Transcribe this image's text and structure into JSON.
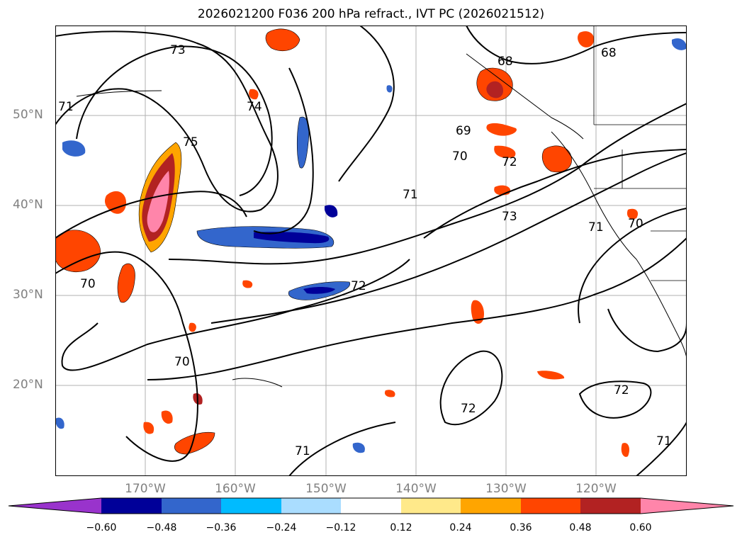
{
  "title": "2026021200 F036 200 hPa refract., IVT PC (2026021512)",
  "lat_labels": [
    {
      "text": "50°N",
      "lat": 50
    },
    {
      "text": "40°N",
      "lat": 40
    },
    {
      "text": "30°N",
      "lat": 30
    },
    {
      "text": "20°N",
      "lat": 20
    }
  ],
  "lon_labels": [
    {
      "text": "170°W",
      "lon": -170
    },
    {
      "text": "160°W",
      "lon": -160
    },
    {
      "text": "150°W",
      "lon": -150
    },
    {
      "text": "140°W",
      "lon": -140
    },
    {
      "text": "130°W",
      "lon": -130
    },
    {
      "text": "120°W",
      "lon": -120
    }
  ],
  "colorbar": {
    "ticks": [
      "−0.60",
      "−0.48",
      "−0.36",
      "−0.24",
      "−0.12",
      "0.12",
      "0.24",
      "0.36",
      "0.48",
      "0.60"
    ],
    "colors": [
      "#9933cc",
      "#000099",
      "#3366cc",
      "#00bbff",
      "#aaddff",
      "#ffffff",
      "#ffe98a",
      "#ffa500",
      "#ff4500",
      "#b22222",
      "#ff85aa"
    ]
  },
  "contour_labels": [
    "73",
    "74",
    "75",
    "71",
    "68",
    "68",
    "69",
    "70",
    "72",
    "71",
    "73",
    "71",
    "70",
    "70",
    "72",
    "70",
    "72",
    "72",
    "71",
    "71"
  ]
}
